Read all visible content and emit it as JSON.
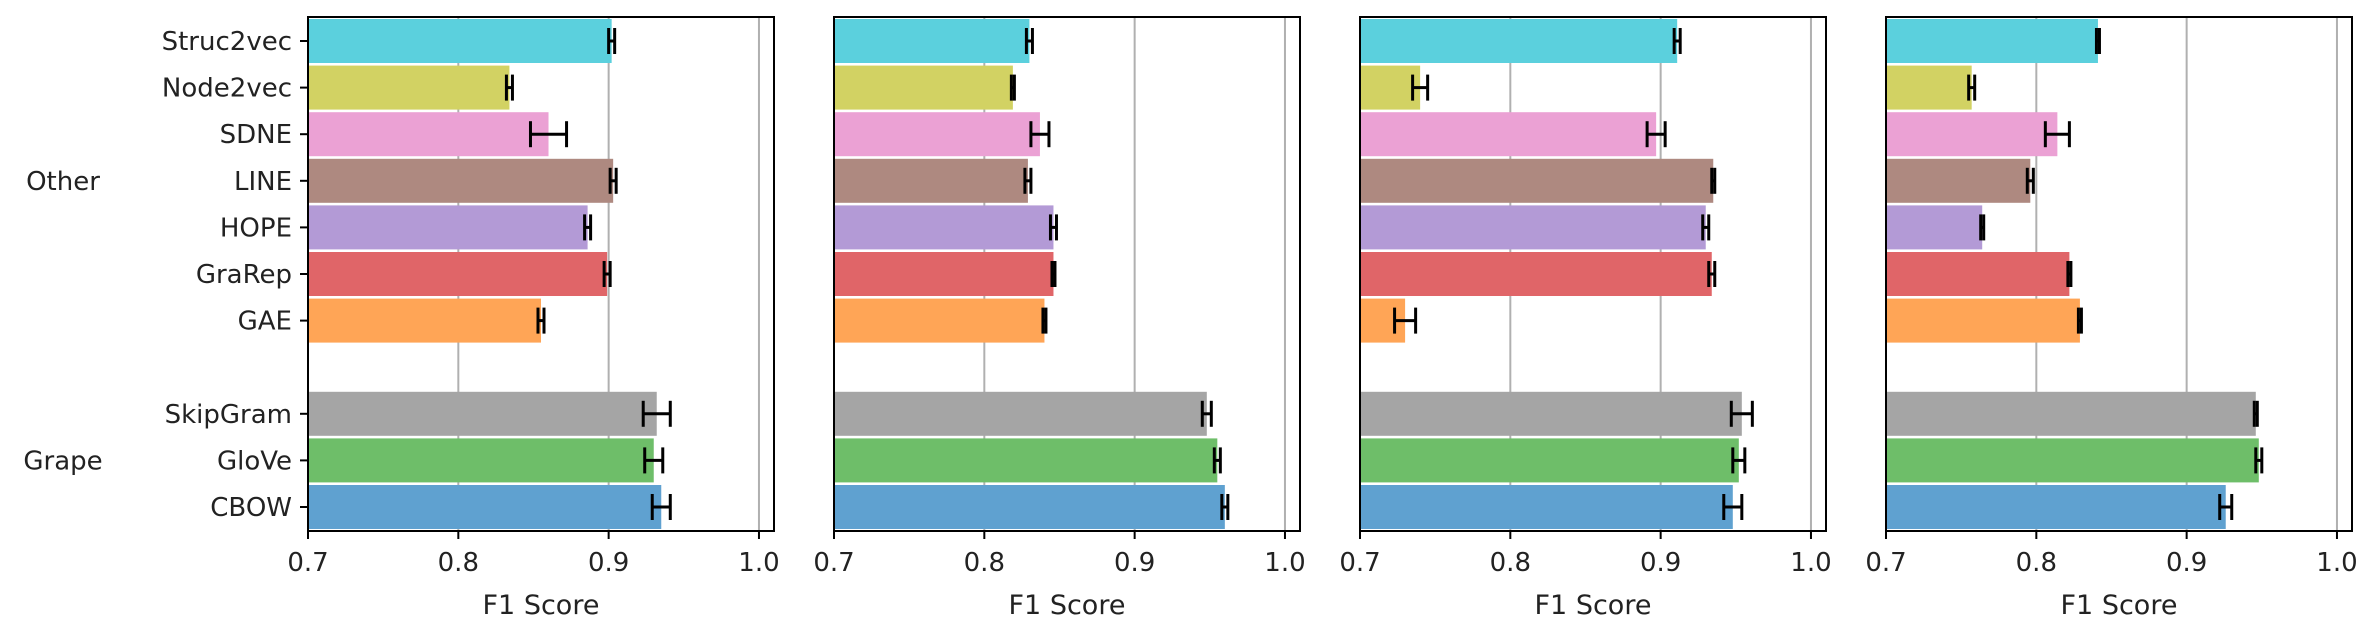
{
  "chart_data": {
    "type": "bar",
    "orientation": "horizontal",
    "groups": [
      {
        "name": "Other",
        "categories": [
          "Struc2vec",
          "Node2vec",
          "SDNE",
          "LINE",
          "HOPE",
          "GraRep",
          "GAE"
        ]
      },
      {
        "name": "Grape",
        "categories": [
          "SkipGram",
          "GloVe",
          "CBOW"
        ]
      }
    ],
    "categories": [
      "Struc2vec",
      "Node2vec",
      "SDNE",
      "LINE",
      "HOPE",
      "GraRep",
      "GAE",
      "SkipGram",
      "GloVe",
      "CBOW"
    ],
    "colors": [
      "#5bd0dd",
      "#d2d263",
      "#eba1d4",
      "#ae8980",
      "#b39ad6",
      "#e06568",
      "#ffa556",
      "#a5a5a5",
      "#6ebe69",
      "#5fa1d0"
    ],
    "xlabel": "F1 Score",
    "xlim": [
      0.7,
      1.01
    ],
    "xticks": [
      "0.7",
      "0.8",
      "0.9",
      "1.0"
    ],
    "grid": "vertical",
    "panels": [
      {
        "values": [
          0.902,
          0.834,
          0.86,
          0.903,
          0.886,
          0.899,
          0.855,
          0.932,
          0.93,
          0.935
        ],
        "errors": [
          0.002,
          0.002,
          0.012,
          0.002,
          0.002,
          0.002,
          0.002,
          0.009,
          0.006,
          0.006
        ]
      },
      {
        "values": [
          0.83,
          0.819,
          0.837,
          0.829,
          0.846,
          0.846,
          0.84,
          0.948,
          0.955,
          0.96
        ],
        "errors": [
          0.002,
          0.001,
          0.006,
          0.002,
          0.002,
          0.001,
          0.001,
          0.003,
          0.002,
          0.002
        ]
      },
      {
        "values": [
          0.911,
          0.74,
          0.897,
          0.935,
          0.93,
          0.934,
          0.73,
          0.954,
          0.952,
          0.948
        ],
        "errors": [
          0.002,
          0.005,
          0.006,
          0.001,
          0.002,
          0.002,
          0.007,
          0.007,
          0.004,
          0.006
        ]
      },
      {
        "values": [
          0.841,
          0.757,
          0.814,
          0.796,
          0.764,
          0.822,
          0.829,
          0.946,
          0.948,
          0.926
        ],
        "errors": [
          0.001,
          0.002,
          0.008,
          0.002,
          0.001,
          0.001,
          0.001,
          0.001,
          0.002,
          0.004
        ]
      }
    ]
  }
}
